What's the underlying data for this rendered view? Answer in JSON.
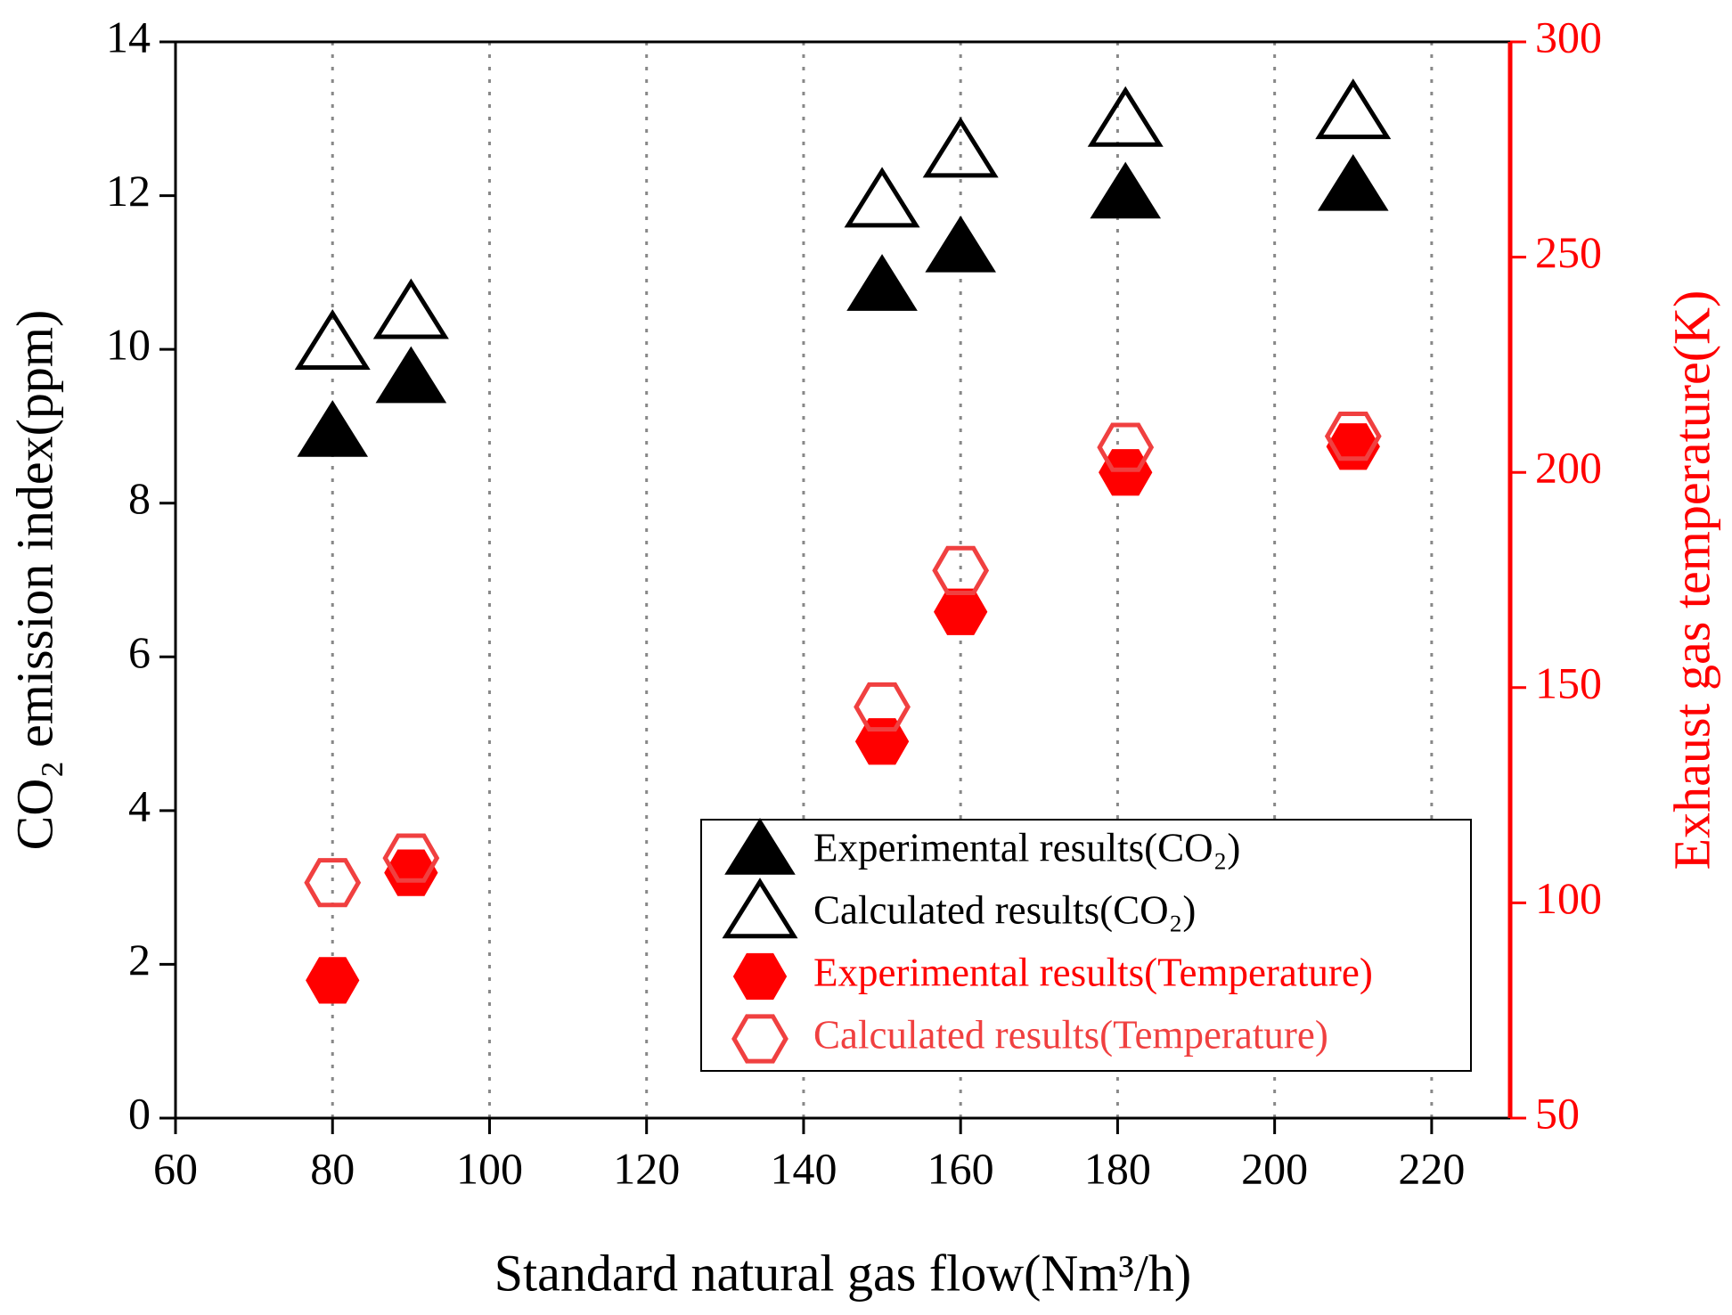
{
  "chart_data": {
    "type": "scatter",
    "xlabel": "Standard natural gas flow(Nm³/h)",
    "ylabel": "CO₂ emission index(ppm)",
    "y2label": "Exhaust gas temperature(K)",
    "x": [
      80,
      90,
      150,
      160,
      181,
      210
    ],
    "xlim": [
      60,
      230
    ],
    "xticks": [
      60,
      80,
      100,
      120,
      140,
      160,
      180,
      200,
      220
    ],
    "ylim": [
      0,
      14
    ],
    "yticks": [
      0,
      2,
      4,
      6,
      8,
      10,
      12,
      14
    ],
    "y2lim": [
      50,
      300
    ],
    "y2ticks": [
      50,
      100,
      150,
      200,
      250,
      300
    ],
    "y2color": "#ff0000",
    "grid": true,
    "legend": "lower right",
    "series": [
      {
        "name": "Experimental results(CO₂)",
        "color": "#000000",
        "marker": "triangle",
        "filled": true,
        "values": [
          8.9,
          9.6,
          10.8,
          11.3,
          12.0,
          12.1
        ]
      },
      {
        "name": "Calculated results(CO₂)",
        "color": "#000000",
        "marker": "triangle",
        "filled": false,
        "values": [
          10.05,
          10.45,
          11.9,
          12.55,
          12.95,
          13.05
        ]
      },
      {
        "name": "Experimental results(Temperature)",
        "color": "#ff0000",
        "marker": "hexagon",
        "filled": true,
        "axis": "y2",
        "values": [
          82,
          107,
          137.5,
          167.6,
          200,
          206
        ]
      },
      {
        "name": "Calculated results(Temperature)",
        "color": "#f04040",
        "marker": "hexagon",
        "filled": false,
        "axis": "y2",
        "values": [
          104.7,
          110.4,
          145.5,
          177.2,
          205.8,
          208.4
        ]
      }
    ]
  }
}
